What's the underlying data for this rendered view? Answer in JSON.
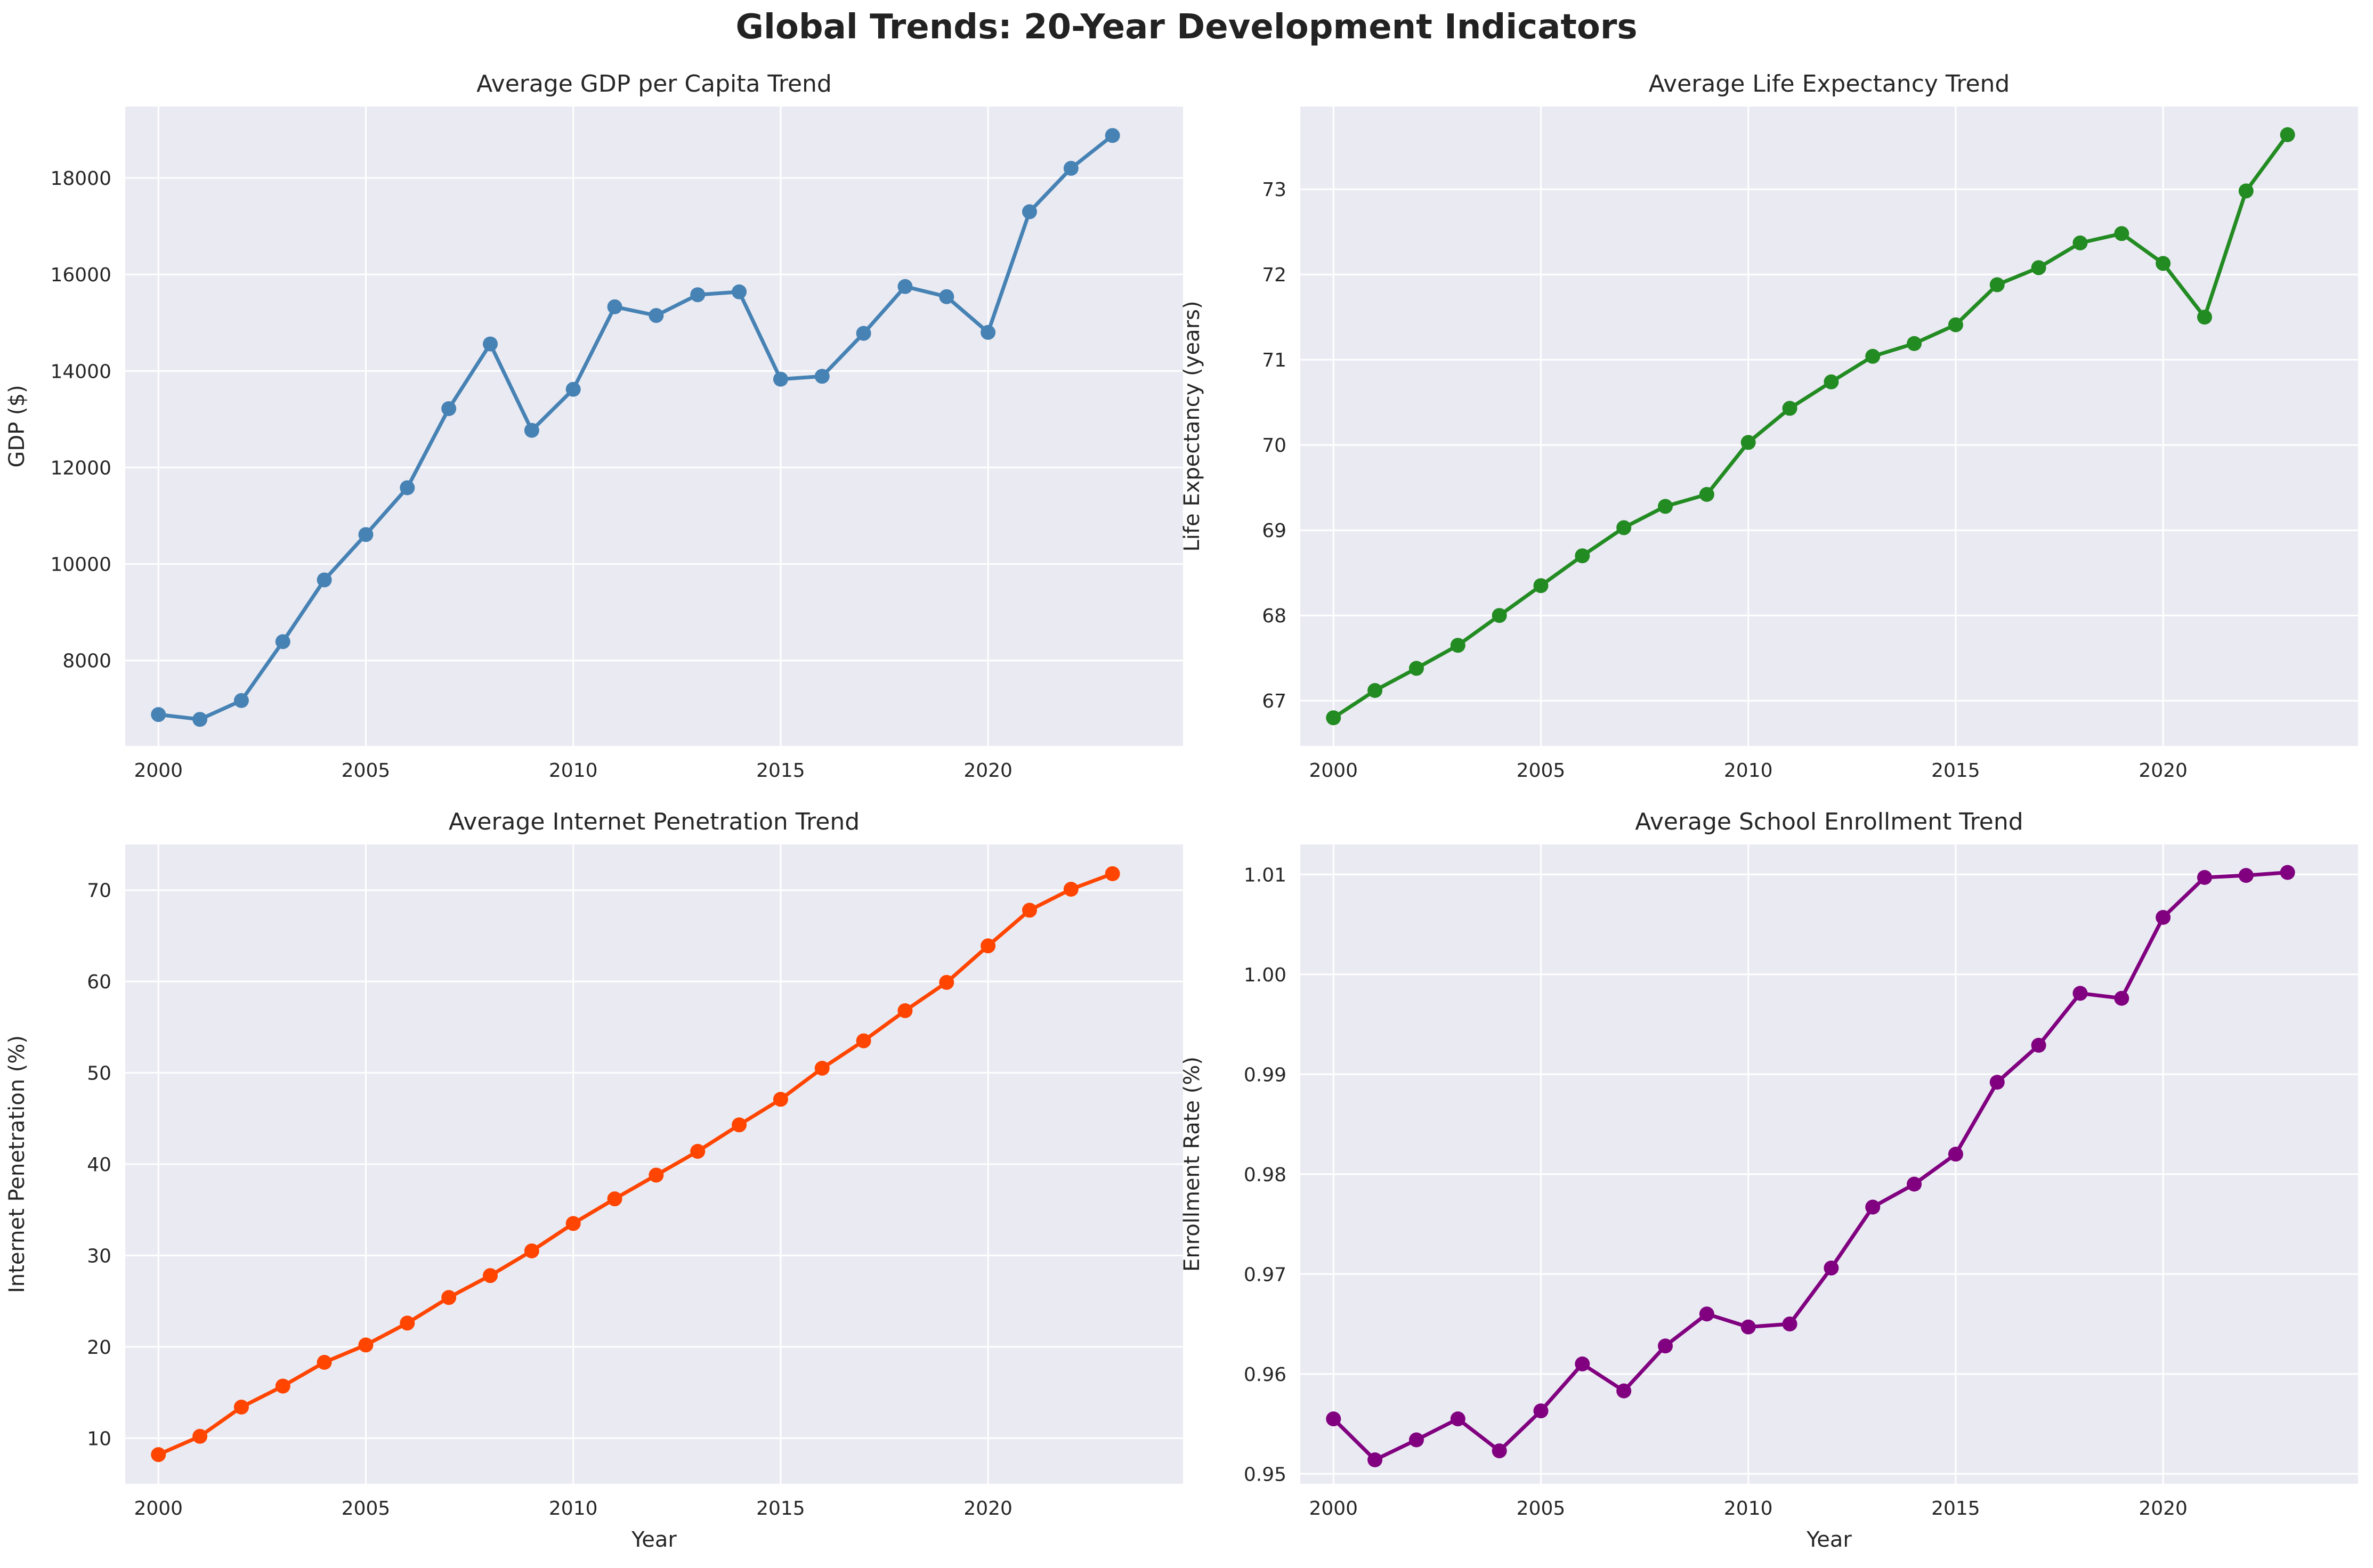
{
  "title": "Global Trends: 20-Year Development Indicators",
  "chart_data": [
    {
      "type": "line",
      "title": "Average GDP per Capita Trend",
      "xlabel": "",
      "ylabel": "GDP ($)",
      "color": "#4682b4",
      "x": [
        2000,
        2001,
        2002,
        2003,
        2004,
        2005,
        2006,
        2007,
        2008,
        2009,
        2010,
        2011,
        2012,
        2013,
        2014,
        2015,
        2016,
        2017,
        2018,
        2019,
        2020,
        2021,
        2022,
        2023
      ],
      "y": [
        6880,
        6780,
        7170,
        8390,
        9670,
        10610,
        11580,
        13220,
        14560,
        12770,
        13620,
        15330,
        15150,
        15580,
        15640,
        13830,
        13890,
        14780,
        15750,
        15540,
        14800,
        17300,
        18200,
        18880
      ],
      "xlim": [
        1999.2,
        2024.7
      ],
      "ylim": [
        6230,
        19480
      ],
      "xticks": [
        2000,
        2005,
        2010,
        2015,
        2020
      ],
      "yticks": [
        8000,
        10000,
        12000,
        14000,
        16000,
        18000
      ],
      "grid": true
    },
    {
      "type": "line",
      "title": "Average Life Expectancy Trend",
      "xlabel": "",
      "ylabel": "Life Expectancy (years)",
      "color": "#228b22",
      "x": [
        2000,
        2001,
        2002,
        2003,
        2004,
        2005,
        2006,
        2007,
        2008,
        2009,
        2010,
        2011,
        2012,
        2013,
        2014,
        2015,
        2016,
        2017,
        2018,
        2019,
        2020,
        2021,
        2022,
        2023
      ],
      "y": [
        66.8,
        67.12,
        67.38,
        67.65,
        68.0,
        68.35,
        68.7,
        69.03,
        69.28,
        69.42,
        70.03,
        70.43,
        70.74,
        71.04,
        71.19,
        71.41,
        71.88,
        72.08,
        72.37,
        72.48,
        72.13,
        71.5,
        72.98,
        73.64
      ],
      "xlim": [
        1999.2,
        2024.7
      ],
      "ylim": [
        66.47,
        73.97
      ],
      "xticks": [
        2000,
        2005,
        2010,
        2015,
        2020
      ],
      "yticks": [
        67,
        68,
        69,
        70,
        71,
        72,
        73
      ],
      "grid": true
    },
    {
      "type": "line",
      "title": "Average Internet Penetration Trend",
      "xlabel": "Year",
      "ylabel": "Internet Penetration (%)",
      "color": "#ff4500",
      "x": [
        2000,
        2001,
        2002,
        2003,
        2004,
        2005,
        2006,
        2007,
        2008,
        2009,
        2010,
        2011,
        2012,
        2013,
        2014,
        2015,
        2016,
        2017,
        2018,
        2019,
        2020,
        2021,
        2022,
        2023
      ],
      "y": [
        8.2,
        10.2,
        13.4,
        15.7,
        18.3,
        20.2,
        22.6,
        25.4,
        27.8,
        30.5,
        33.5,
        36.2,
        38.8,
        41.4,
        44.3,
        47.1,
        50.5,
        53.5,
        56.8,
        59.9,
        63.9,
        67.8,
        70.1,
        71.8
      ],
      "xlim": [
        1999.2,
        2024.7
      ],
      "ylim": [
        5.0,
        75.0
      ],
      "xticks": [
        2000,
        2005,
        2010,
        2015,
        2020
      ],
      "yticks": [
        10,
        20,
        30,
        40,
        50,
        60,
        70
      ],
      "grid": true
    },
    {
      "type": "line",
      "title": "Average School Enrollment Trend",
      "xlabel": "Year",
      "ylabel": "Enrollment Rate (%)",
      "color": "#800080",
      "x": [
        2000,
        2001,
        2002,
        2003,
        2004,
        2005,
        2006,
        2007,
        2008,
        2009,
        2010,
        2011,
        2012,
        2013,
        2014,
        2015,
        2016,
        2017,
        2018,
        2019,
        2020,
        2021,
        2022,
        2023
      ],
      "y": [
        0.9555,
        0.9514,
        0.9534,
        0.9555,
        0.9523,
        0.9563,
        0.961,
        0.9583,
        0.9628,
        0.966,
        0.9647,
        0.965,
        0.9706,
        0.9767,
        0.979,
        0.982,
        0.9892,
        0.9929,
        0.9981,
        0.9976,
        1.0057,
        1.0097,
        1.0099,
        1.0102
      ],
      "xlim": [
        1999.2,
        2024.7
      ],
      "ylim": [
        0.949,
        1.013
      ],
      "xticks": [
        2000,
        2005,
        2010,
        2015,
        2020
      ],
      "yticks": [
        0.95,
        0.96,
        0.97,
        0.98,
        0.99,
        1.0,
        1.01
      ],
      "ytick_labels": [
        "0.95",
        "0.96",
        "0.97",
        "0.98",
        "0.99",
        "1.00",
        "1.01"
      ],
      "grid": true
    }
  ]
}
